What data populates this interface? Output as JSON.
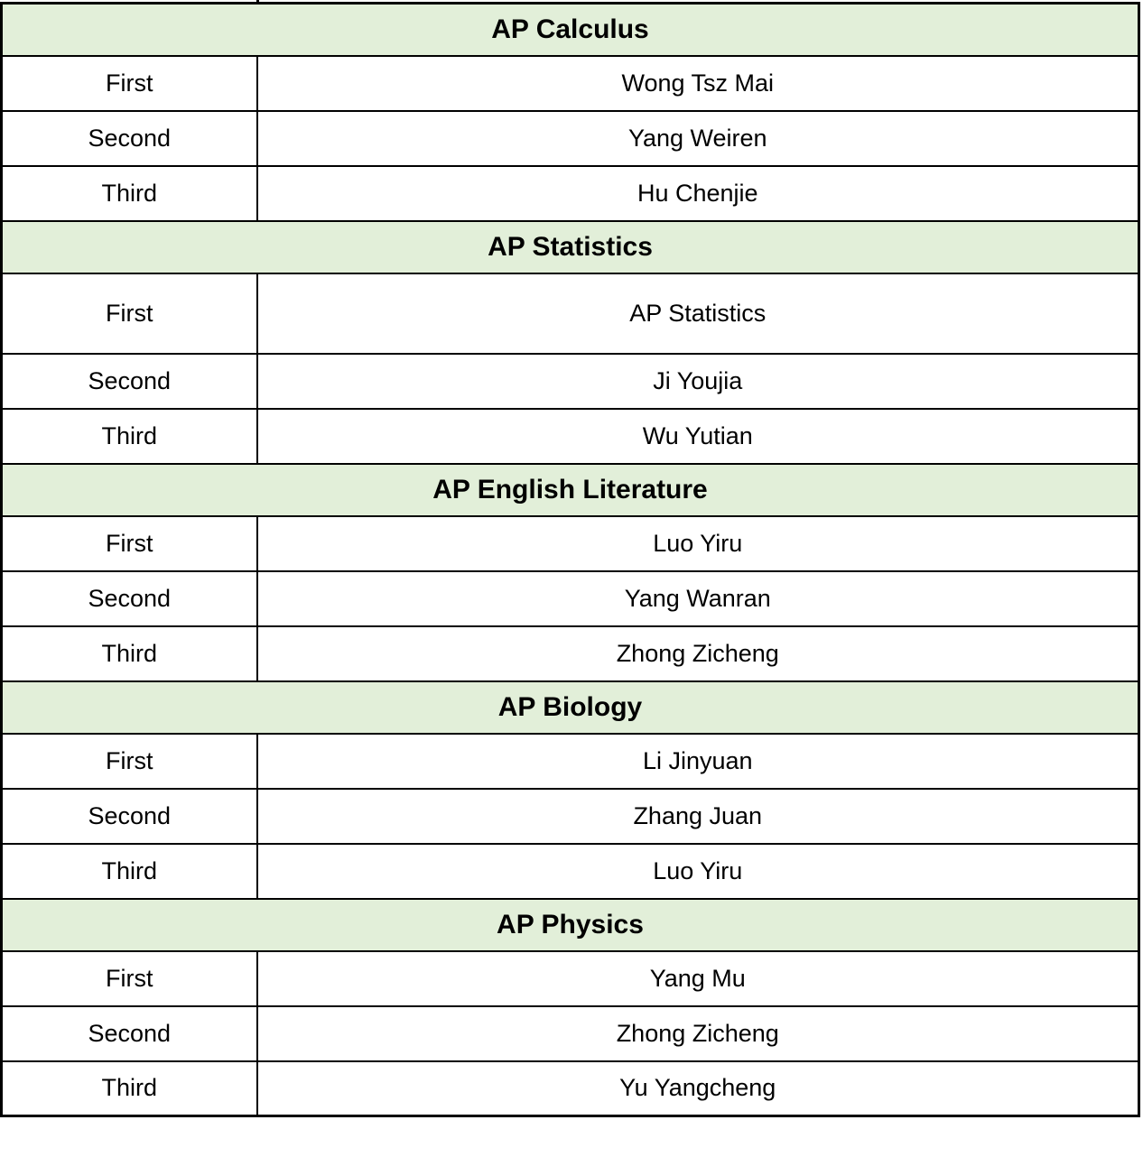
{
  "table": {
    "colors": {
      "header_bg": "#e2efd9",
      "border": "#000000",
      "text": "#000000",
      "row_bg": "#ffffff"
    },
    "rank_labels": [
      "First",
      "Second",
      "Third"
    ],
    "sections": [
      {
        "subject": "AP Calculus",
        "winners": [
          "Wong Tsz Mai",
          "Yang Weiren",
          "Hu Chenjie"
        ]
      },
      {
        "subject": "AP Statistics",
        "winners": [
          "AP Statistics",
          "Ji Youjia",
          "Wu Yutian"
        ]
      },
      {
        "subject": "AP English Literature",
        "winners": [
          "Luo Yiru",
          "Yang Wanran",
          "Zhong Zicheng"
        ]
      },
      {
        "subject": "AP Biology",
        "winners": [
          "Li Jinyuan",
          "Zhang Juan",
          "Luo Yiru"
        ]
      },
      {
        "subject": "AP Physics",
        "winners": [
          "Yang Mu",
          "Zhong Zicheng",
          "Yu Yangcheng"
        ]
      }
    ]
  }
}
